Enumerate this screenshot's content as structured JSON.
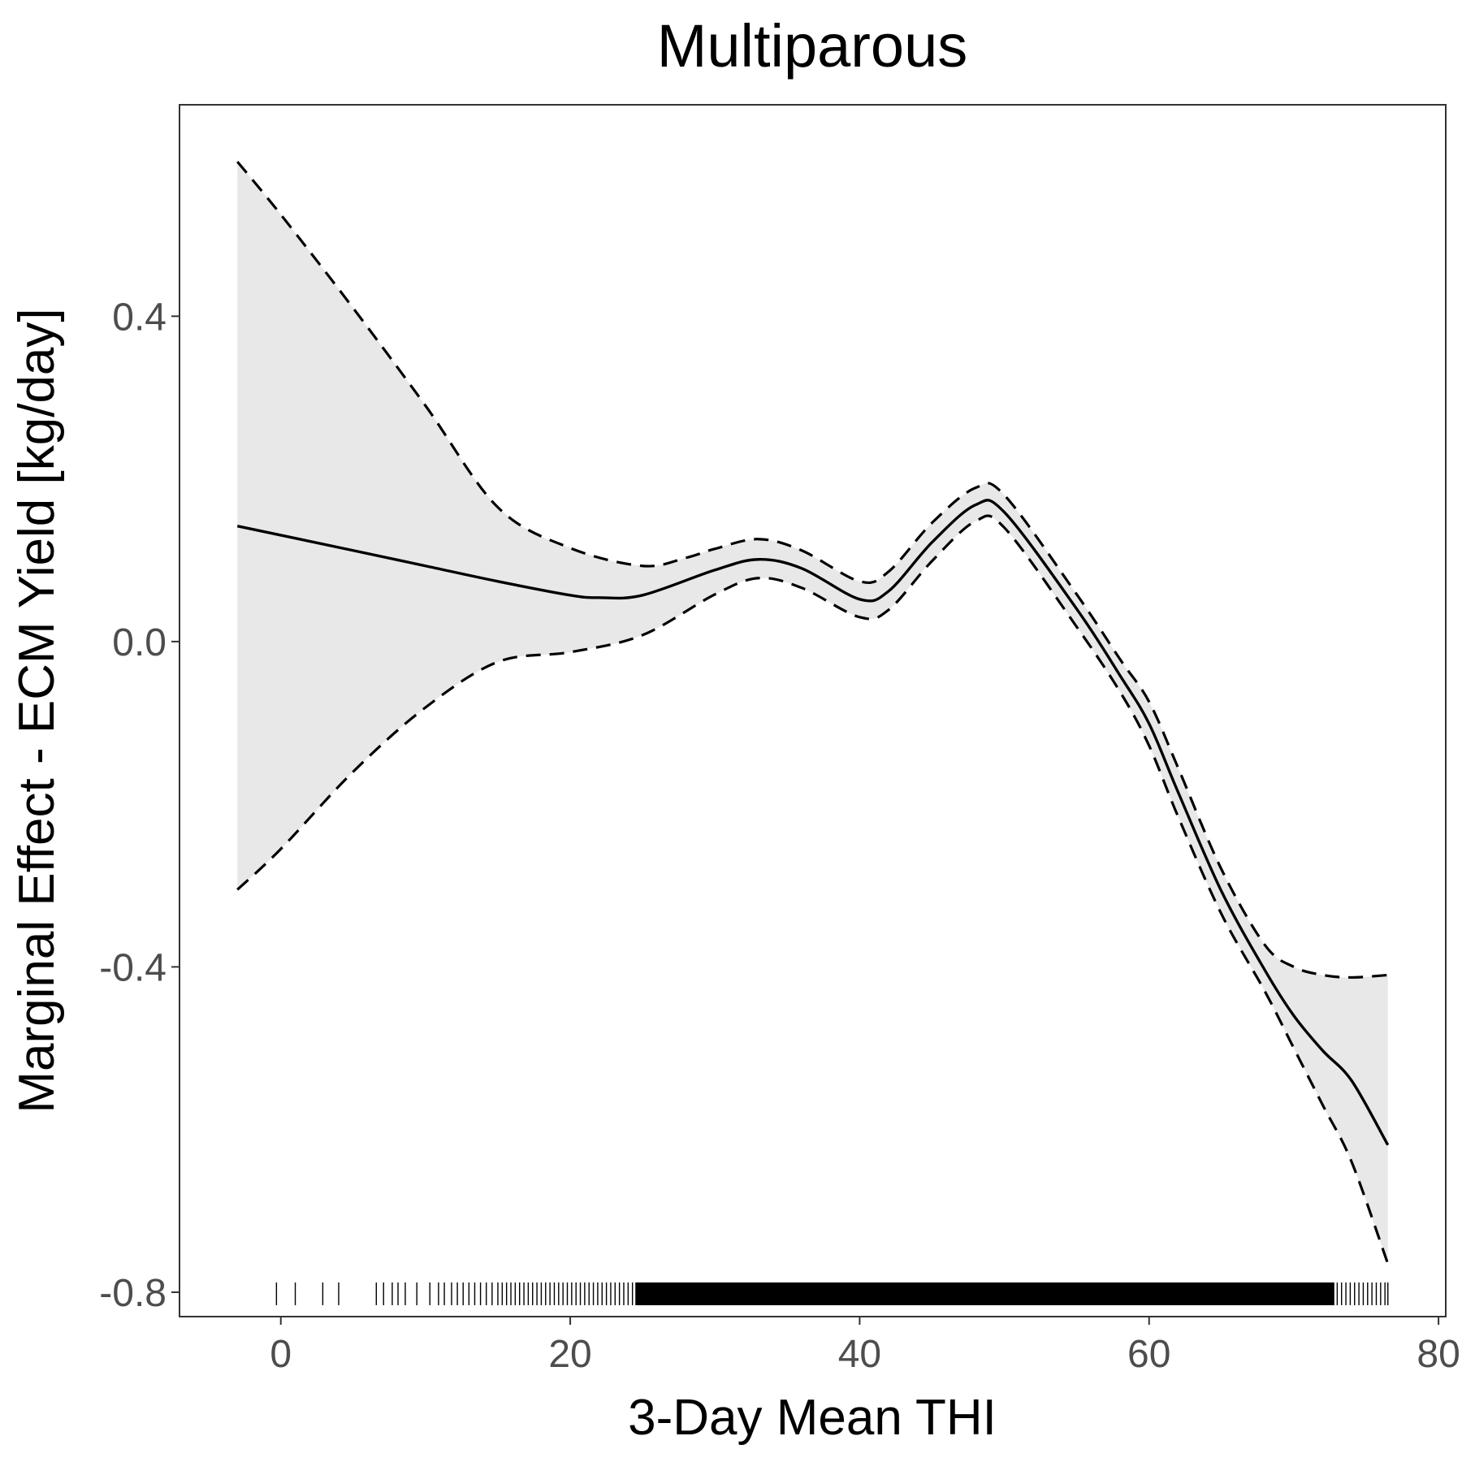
{
  "chart_data": {
    "type": "line",
    "title": "Multiparous",
    "xlabel": "3-Day Mean THI",
    "ylabel": "Marginal Effect - ECM Yield [kg/day]",
    "xlim": [
      -7,
      80.5
    ],
    "ylim": [
      -0.83,
      0.66
    ],
    "x_ticks": [
      0,
      20,
      40,
      60,
      80
    ],
    "y_ticks": [
      -0.8,
      -0.4,
      0.0,
      0.4
    ],
    "x_tick_labels": [
      "0",
      "20",
      "40",
      "60",
      "80"
    ],
    "y_tick_labels": [
      "-0.8",
      "-0.4",
      "0.0",
      "0.4"
    ],
    "grid": false,
    "legend": "none",
    "colors": {
      "line": "#000000",
      "band": "#e8e8e8",
      "frame": "#333333",
      "tick_text": "#4d4d4d"
    },
    "series": [
      {
        "role": "estimate",
        "style": "solid",
        "x": [
          -3,
          5,
          10,
          15,
          20,
          22,
          25,
          30,
          33,
          36,
          40,
          42,
          45,
          48,
          50,
          55,
          58,
          60,
          62,
          65,
          68,
          70,
          72,
          74,
          76.5
        ],
        "y": [
          0.142,
          0.112,
          0.093,
          0.074,
          0.057,
          0.054,
          0.057,
          0.088,
          0.101,
          0.09,
          0.052,
          0.062,
          0.122,
          0.168,
          0.159,
          0.04,
          -0.042,
          -0.101,
          -0.185,
          -0.307,
          -0.404,
          -0.46,
          -0.503,
          -0.54,
          -0.619
        ]
      },
      {
        "role": "upper-ci",
        "style": "dashed",
        "x": [
          -3,
          0,
          5,
          10,
          15,
          20,
          25,
          28,
          30,
          33,
          36,
          40,
          42,
          45,
          48,
          50,
          55,
          58,
          60,
          62,
          65,
          68,
          70,
          72,
          74,
          76.5
        ],
        "y": [
          0.59,
          0.525,
          0.41,
          0.29,
          0.165,
          0.115,
          0.093,
          0.103,
          0.114,
          0.126,
          0.112,
          0.074,
          0.086,
          0.146,
          0.189,
          0.18,
          0.058,
          -0.022,
          -0.074,
          -0.155,
          -0.28,
          -0.373,
          -0.4,
          -0.41,
          -0.413,
          -0.41
        ]
      },
      {
        "role": "lower-ci",
        "style": "dashed",
        "x": [
          -3,
          0,
          5,
          10,
          15,
          20,
          25,
          30,
          33,
          36,
          40,
          42,
          45,
          48,
          50,
          55,
          58,
          60,
          62,
          65,
          68,
          70,
          72,
          74,
          76.5
        ],
        "y": [
          -0.305,
          -0.255,
          -0.16,
          -0.081,
          -0.025,
          -0.013,
          0.008,
          0.058,
          0.078,
          0.066,
          0.03,
          0.039,
          0.099,
          0.148,
          0.14,
          0.018,
          -0.062,
          -0.128,
          -0.215,
          -0.335,
          -0.43,
          -0.5,
          -0.57,
          -0.64,
          -0.765
        ]
      }
    ],
    "rug": {
      "position": "bottom",
      "sparse_x": [
        -0.3,
        1,
        2.9,
        4,
        6.6,
        7.1,
        7.7,
        8.1,
        8.6,
        9.4,
        10.3,
        10.9,
        11.3,
        11.8,
        12.2,
        12.6,
        13,
        13.4,
        13.8,
        14.2,
        14.6,
        15,
        15.3,
        15.6,
        15.9,
        16.2,
        16.5,
        16.8,
        17.1,
        17.4,
        17.7,
        18,
        18.3,
        18.6,
        18.9,
        19.2,
        19.5,
        19.8,
        20.1,
        20.4,
        20.7,
        21,
        21.3,
        21.6,
        21.9,
        22.2,
        22.5,
        22.8,
        23.1,
        23.4,
        23.7,
        24,
        24.3,
        73,
        73.3,
        73.6,
        73.9,
        74.2,
        74.5,
        74.8,
        75.1,
        75.4,
        75.7,
        76,
        76.3,
        76.5
      ],
      "dense_range": [
        24.5,
        72.8
      ]
    }
  }
}
